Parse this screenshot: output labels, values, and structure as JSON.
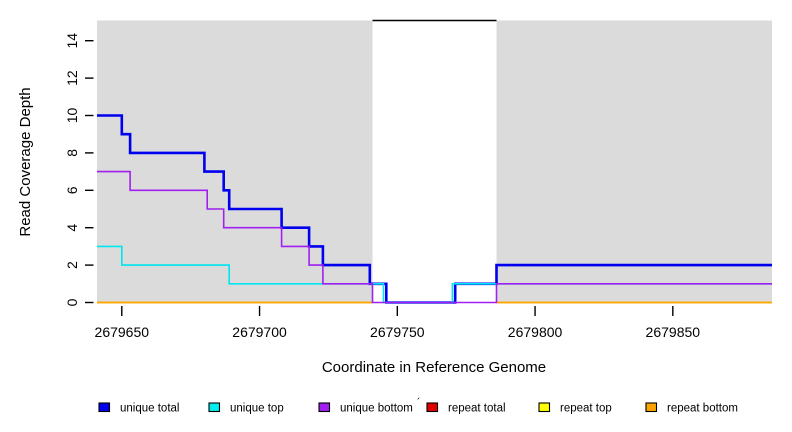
{
  "chart_data": {
    "type": "line",
    "subtype": "step",
    "title": "",
    "xlabel": "Coordinate in Reference Genome",
    "ylabel": "Read Coverage Depth",
    "xlim": [
      2679641,
      2679886
    ],
    "ylim": [
      0,
      15.08
    ],
    "x_ticks": [
      2679650,
      2679700,
      2679750,
      2679800,
      2679850
    ],
    "y_ticks": [
      0,
      2,
      4,
      6,
      8,
      10,
      12,
      14
    ],
    "grid": false,
    "plot_background": "#DBDBDB",
    "highlight_region": {
      "x_start": 2679741,
      "x_end": 2679786,
      "fill": "#FFFFFF",
      "top_border": "#000000"
    },
    "series": [
      {
        "name": "repeat total",
        "color": "#E00000",
        "width": 1.6,
        "points": [
          [
            2679641,
            0
          ]
        ]
      },
      {
        "name": "repeat top",
        "color": "#FFFF00",
        "width": 1.6,
        "points": [
          [
            2679641,
            0
          ]
        ]
      },
      {
        "name": "repeat bottom",
        "color": "#FFA500",
        "width": 1.6,
        "points": [
          [
            2679641,
            0
          ]
        ]
      },
      {
        "name": "unique total",
        "color": "#0000EE",
        "width": 2.6,
        "points": [
          [
            2679641,
            10
          ],
          [
            2679650,
            9
          ],
          [
            2679653,
            8
          ],
          [
            2679680,
            7
          ],
          [
            2679687,
            6
          ],
          [
            2679689,
            5
          ],
          [
            2679708,
            4
          ],
          [
            2679718,
            3
          ],
          [
            2679723,
            2
          ],
          [
            2679740,
            1
          ],
          [
            2679746,
            0
          ],
          [
            2679771,
            1
          ],
          [
            2679786,
            2
          ]
        ]
      },
      {
        "name": "unique top",
        "color": "#00E5EE",
        "width": 1.6,
        "points": [
          [
            2679641,
            3
          ],
          [
            2679650,
            2
          ],
          [
            2679689,
            1
          ],
          [
            2679745,
            0
          ],
          [
            2679770,
            1
          ]
        ]
      },
      {
        "name": "unique bottom",
        "color": "#A020F0",
        "width": 1.6,
        "points": [
          [
            2679641,
            7
          ],
          [
            2679653,
            6
          ],
          [
            2679681,
            5
          ],
          [
            2679687,
            4
          ],
          [
            2679708,
            3
          ],
          [
            2679718,
            2
          ],
          [
            2679723,
            1
          ],
          [
            2679741,
            0
          ],
          [
            2679786,
            1
          ]
        ]
      }
    ],
    "legend": {
      "position": "bottom",
      "stray_mark": "´",
      "entries": [
        {
          "label": "unique total",
          "color": "#0000EE"
        },
        {
          "label": "unique top",
          "color": "#00EEEE"
        },
        {
          "label": "unique bottom",
          "color": "#A020F0"
        },
        {
          "label": "repeat total",
          "color": "#E00000"
        },
        {
          "label": "repeat top",
          "color": "#FFFF00"
        },
        {
          "label": "repeat bottom",
          "color": "#FFA500"
        }
      ]
    }
  }
}
